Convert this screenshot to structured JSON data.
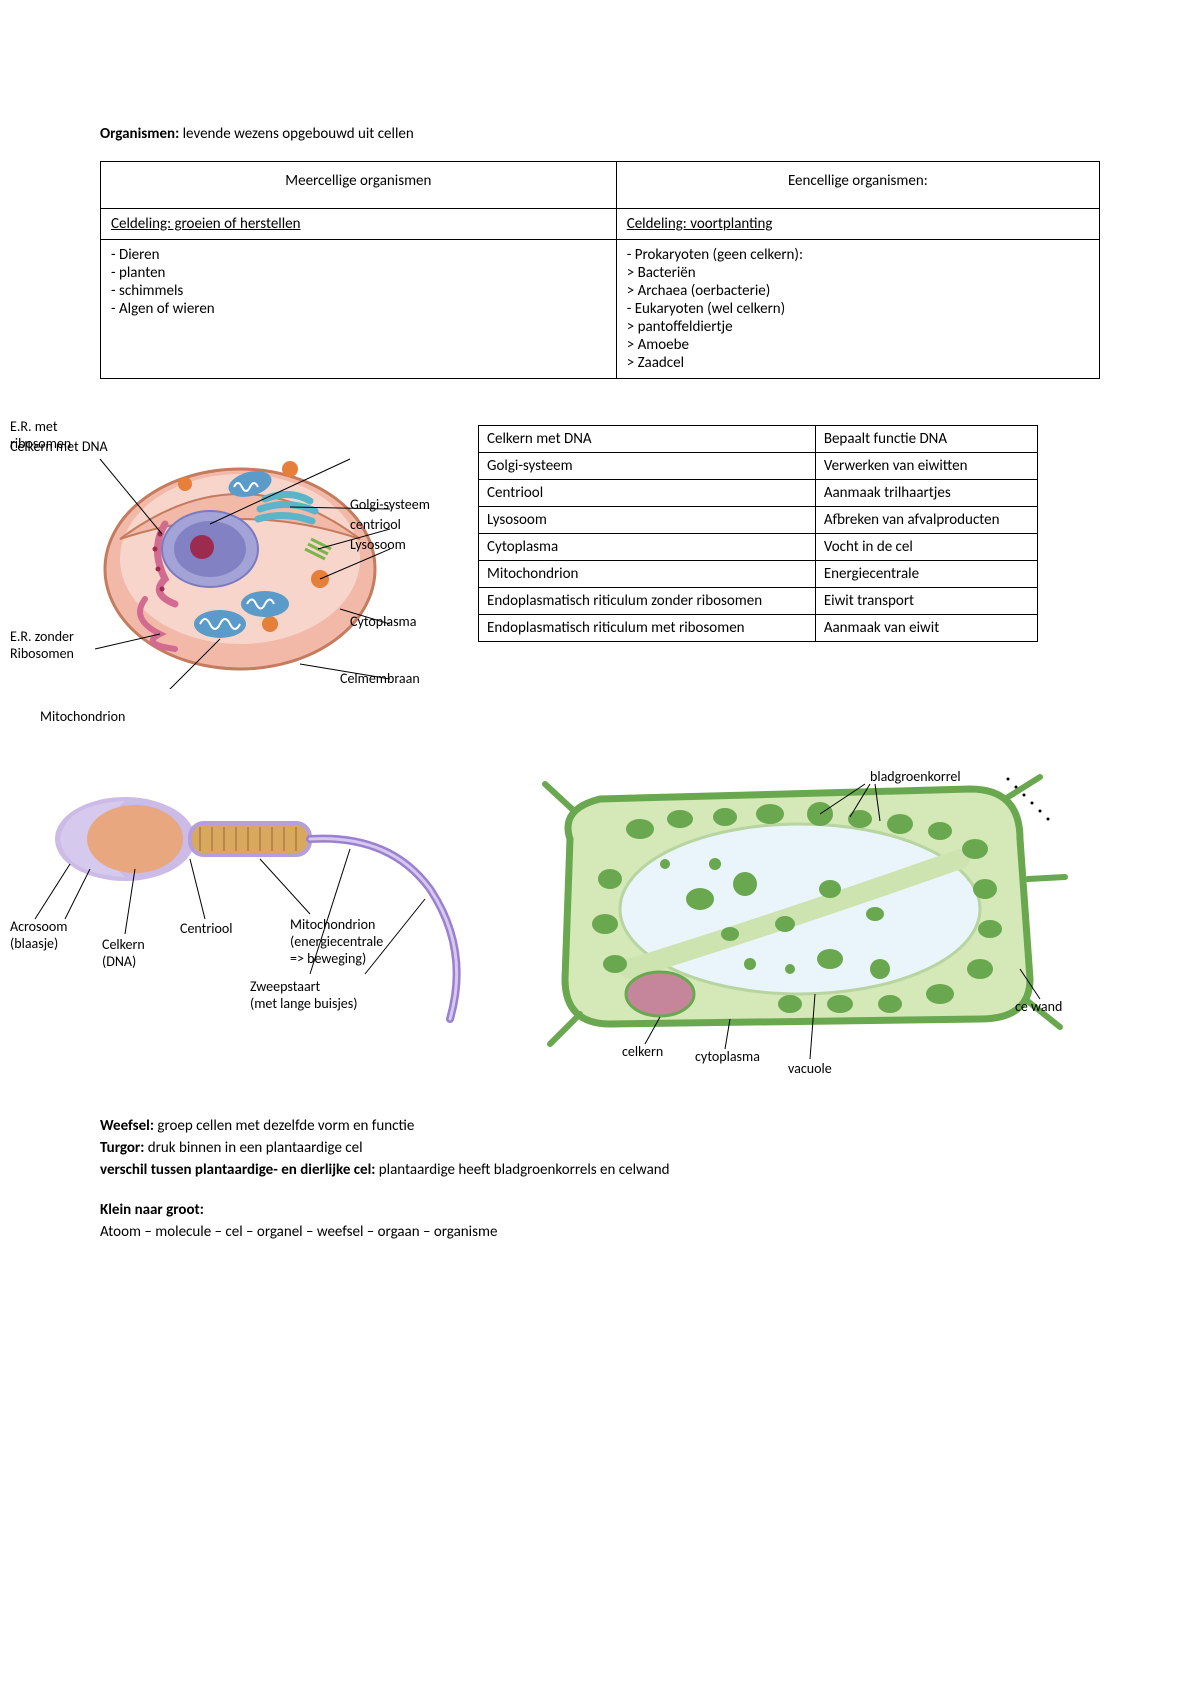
{
  "intro": {
    "label": "Organismen:",
    "text": " levende wezens opgebouwd uit cellen"
  },
  "orgTable": {
    "headers": [
      "Meercellige organismen",
      "Eencellige organismen:"
    ],
    "subheaders": [
      "Celdeling: groeien of herstellen",
      "Celdeling: voortplanting"
    ],
    "left": [
      "- Dieren",
      "- planten",
      "- schimmels",
      "- Algen of wieren"
    ],
    "right": [
      "- Prokaryoten (geen celkern):",
      "> Bacteriën",
      "> Archaea (oerbacterie)",
      "- Eukaryoten (wel celkern)",
      "> pantoffeldiertje",
      "> Amoebe",
      "> Zaadcel"
    ]
  },
  "cellLabels": {
    "er_met": "E.R. met\nribosomen",
    "celkern": "Celkern met DNA",
    "golgi": "Golgi-systeem",
    "centriool": "centriool",
    "lysosoom": "Lysosoom",
    "cytoplasma": "Cytoplasma",
    "celmembraan": "Celmembraan",
    "er_zonder": "E.R. zonder\nRibosomen",
    "mitochondrion": "Mitochondrion"
  },
  "funcTable": {
    "rows": [
      [
        "Celkern met DNA",
        "Bepaalt functie DNA"
      ],
      [
        "Golgi-systeem",
        "Verwerken van eiwitten"
      ],
      [
        "Centriool",
        "Aanmaak trilhaartjes"
      ],
      [
        "Lysosoom",
        "Afbreken van afvalproducten"
      ],
      [
        "Cytoplasma",
        "Vocht in de cel"
      ],
      [
        "Mitochondrion",
        "Energiecentrale"
      ],
      [
        "Endoplasmatisch riticulum zonder ribosomen",
        "Eiwit transport"
      ],
      [
        "Endoplasmatisch riticulum met ribosomen",
        "Aanmaak van eiwit"
      ]
    ]
  },
  "spermLabels": {
    "acrosoom": "Acrosoom\n(blaasje)",
    "celkern": "Celkern\n(DNA)",
    "centriool": "Centriool",
    "mito": "Mitochondrion\n(energiecentrale\n=> beweging)",
    "zweep": "Zweepstaart\n(met lange buisjes)"
  },
  "plantLabels": {
    "bladgroen": "bladgroenkorrel",
    "celkern": "celkern",
    "cytoplasma": "cytoplasma",
    "vacuole": "vacuole",
    "celwand": "ce wand"
  },
  "defs": {
    "weefsel": {
      "label": "Weefsel:",
      "text": " groep cellen met dezelfde vorm en functie"
    },
    "turgor": {
      "label": "Turgor:",
      "text": " druk binnen in een plantaardige cel"
    },
    "verschil": {
      "label": "verschil tussen plantaardige- en dierlijke cel:",
      "text": " plantaardige heeft bladgroenkorrels en celwand"
    },
    "klein": {
      "label": "Klein naar groot:",
      "text": "Atoom – molecule – cel – organel – weefsel – orgaan – organisme"
    }
  },
  "colors": {
    "cellOuter": "#f2b9a8",
    "cellInner": "#f7d5ca",
    "nucleus": "#a3a3d8",
    "nucleusInner": "#8181c4",
    "nucleolus": "#9c2b4f",
    "mito": "#5a9bc9",
    "mitoStripe": "#ffffff",
    "er": "#d36a90",
    "golgi": "#5bb5c9",
    "lyso": "#e57f3a",
    "centriool": "#7bb54a",
    "membrane": "#c47b5e",
    "spermHead": "#e8a77e",
    "spermMembrane": "#b59edb",
    "spermTail": "#9b7fd1",
    "spermMito": "#d9a85f",
    "plantWall": "#6aa84f",
    "plantCyto": "#d4e8b8",
    "plantVac": "#eaf4fb",
    "plantChloro": "#6aa84f",
    "plantNucleus": "#c5869c"
  }
}
